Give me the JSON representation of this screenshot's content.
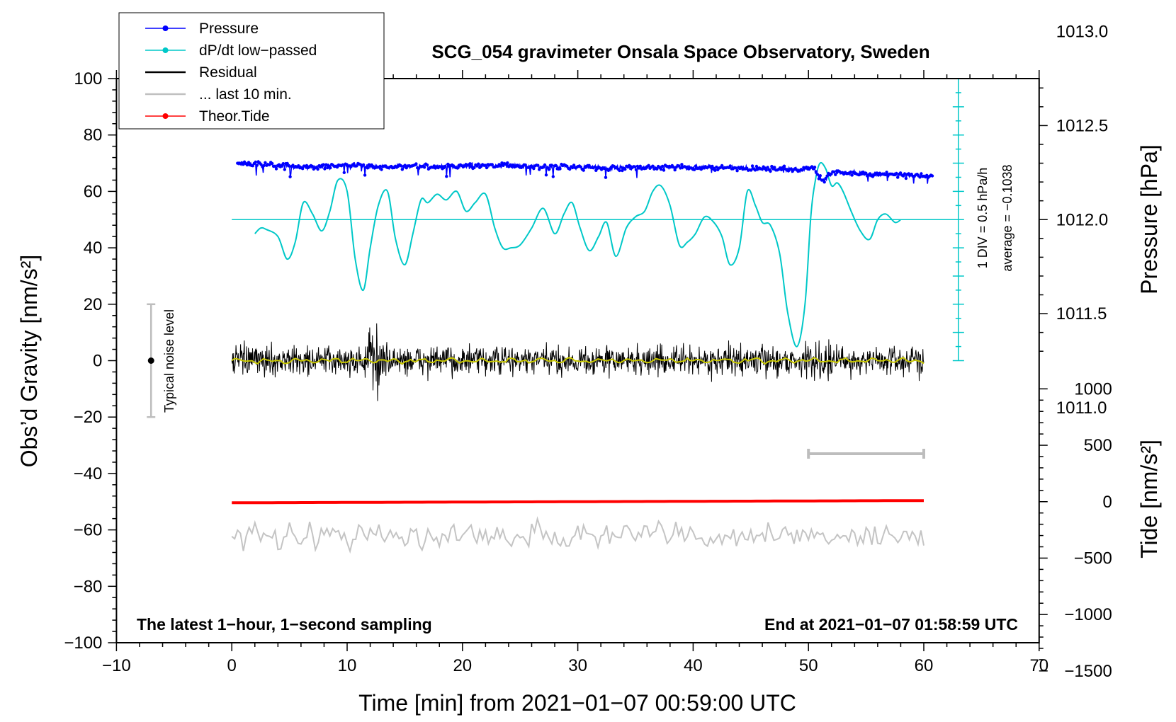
{
  "chart_data": {
    "type": "line",
    "title": "SCG_054 gravimeter Onsala Space Observatory, Sweden",
    "xlabel": "Time [min] from 2021−01−07 00:59:00 UTC",
    "ylabel": "Obs’d Gravity [nm/s²]",
    "ylabel_right_top": "Pressure [hPa]",
    "ylabel_right_bottom": "Tide [nm/s²]",
    "xlim": [
      -10,
      70
    ],
    "ylim": [
      -100,
      100
    ],
    "xticks": [
      -10,
      0,
      10,
      20,
      30,
      40,
      50,
      60,
      70
    ],
    "xtick_labels": [
      "−10",
      "0",
      "10",
      "20",
      "30",
      "40",
      "50",
      "60",
      "70"
    ],
    "yticks": [
      100,
      80,
      60,
      40,
      20,
      0,
      -20,
      -40,
      -60,
      -80,
      -100
    ],
    "ytick_labels": [
      "100",
      "80",
      "60",
      "40",
      "20",
      "0",
      "−20",
      "−40",
      "−60",
      "−80",
      "−100"
    ],
    "pressure_axis": {
      "ticks": [
        1013.0,
        1012.5,
        1012.0,
        1011.5,
        1011.0
      ],
      "tick_labels": [
        "1013.0",
        "1012.5",
        "1012.0",
        "1011.5",
        "1011.0"
      ],
      "gravity_equiv_at_1012": 50,
      "gravity_per_hPa": 66.67
    },
    "tide_axis": {
      "ticks": [
        1000,
        500,
        0,
        -500,
        -1000,
        -1500
      ],
      "tick_labels": [
        "1000",
        "500",
        "0",
        "−500",
        "−1000",
        "−1500"
      ],
      "gravity_equiv_at_0": -50,
      "gravity_per_unit": 0.04
    },
    "legend": [
      {
        "label": "Pressure",
        "color": "#0000ff",
        "marker": true
      },
      {
        "label": "dP/dt low−passed",
        "color": "#00c8c8",
        "marker": true
      },
      {
        "label": "Residual",
        "color": "#000000",
        "marker": false
      },
      {
        "label": "... last 10 min.",
        "color": "#c0c0c0",
        "marker": false
      },
      {
        "label": "Theor.Tide",
        "color": "#ff0000",
        "marker": true
      }
    ],
    "dpdt_scale": {
      "label": "1 DIV = 0.5 hPa/h",
      "average_label": "average = −0.1038",
      "baseline": 50,
      "x": 63,
      "range": [
        0,
        100
      ]
    },
    "noise_bar": {
      "label": "Typical noise level",
      "x": -7,
      "center": 0,
      "low": -20,
      "high": 20
    },
    "last10_bar": {
      "x0": 50,
      "x1": 60,
      "y": -33
    },
    "series": [
      {
        "name": "Pressure",
        "color": "#0000ff",
        "x": [
          0.5,
          3,
          5,
          7,
          9,
          11,
          13,
          15,
          17,
          19,
          21,
          23,
          25,
          27,
          29,
          31,
          33,
          35,
          37,
          39,
          41,
          43,
          45,
          47,
          49,
          50.5,
          51.2,
          52,
          54,
          56,
          58,
          60
        ],
        "values": [
          70,
          69.5,
          69,
          68.5,
          69,
          69.3,
          68.5,
          68.8,
          68.7,
          68.8,
          69,
          69.5,
          69,
          68.7,
          68.8,
          68.5,
          68.3,
          68.5,
          68.5,
          68.7,
          68.5,
          68.3,
          68,
          68,
          67.8,
          68,
          63.5,
          66.5,
          66.5,
          66,
          66,
          65.5
        ]
      },
      {
        "name": "dP/dt low-passed",
        "color": "#00c8c8",
        "x": [
          2,
          2.5,
          3,
          4,
          4.8,
          5.5,
          6.2,
          7,
          7.8,
          8.5,
          9.2,
          10,
          10.7,
          11.4,
          12,
          12.7,
          13.5,
          14.2,
          15,
          15.7,
          16.4,
          17,
          17.8,
          18.6,
          19.5,
          20.3,
          21.1,
          22,
          22.8,
          23.5,
          24.2,
          25,
          26,
          27,
          28,
          28.8,
          29.5,
          30.2,
          31,
          31.8,
          32.5,
          33.3,
          34.2,
          35,
          35.8,
          36.5,
          37.2,
          38,
          38.8,
          39.5,
          40.2,
          41,
          41.8,
          42.5,
          43.2,
          44,
          44.7,
          45.4,
          46,
          46.7,
          47.5,
          48.2,
          49,
          49.7,
          50.2,
          50.6,
          51,
          51.5,
          52,
          52.5,
          53,
          53.7,
          54.5,
          55.3,
          56,
          56.7,
          57.5,
          58
        ],
        "values": [
          45,
          47,
          46.5,
          44,
          36,
          42,
          56,
          52,
          46,
          53,
          64,
          60,
          36,
          25,
          40,
          55,
          60,
          43,
          34,
          45,
          57,
          56,
          59,
          57,
          60,
          53,
          56,
          59,
          47,
          40,
          40,
          41,
          47,
          54,
          45,
          52,
          56,
          47,
          39,
          44,
          49,
          37,
          47,
          51,
          53,
          60,
          62,
          55,
          41,
          42,
          45,
          51,
          49,
          44,
          34,
          40,
          60,
          55,
          49,
          48,
          38,
          17,
          5,
          20,
          51,
          64,
          70,
          68,
          62,
          63,
          60,
          53,
          46,
          43,
          50,
          52,
          49,
          50
        ]
      },
      {
        "name": "Residual",
        "color": "#000000",
        "x": [
          0,
          60
        ],
        "values": [
          0,
          0
        ]
      },
      {
        "name": "Theor.Tide",
        "color": "#ff0000",
        "x": [
          0,
          60
        ],
        "values": [
          -50.4,
          -49.6
        ]
      }
    ]
  },
  "notes": {
    "left": "The latest 1−hour, 1−second sampling",
    "right": "End at 2021−01−07 01:58:59 UTC"
  }
}
